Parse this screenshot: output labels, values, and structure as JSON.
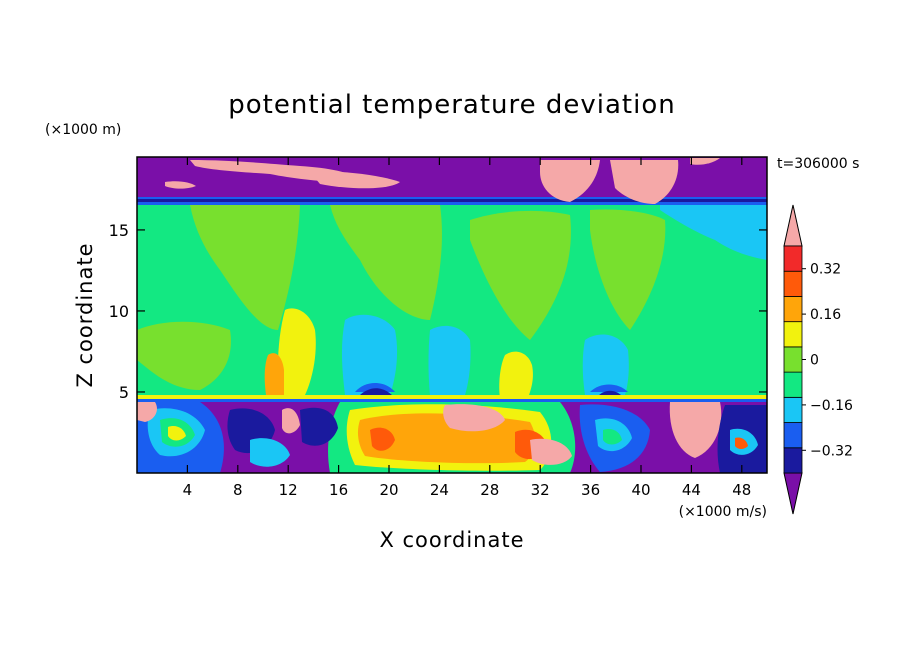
{
  "chart_data": {
    "type": "heatmap",
    "title": "potential temperature deviation",
    "xlabel": "X coordinate",
    "ylabel": "Z coordinate",
    "x_unit": "(×1000 m/s)",
    "y_unit": "(×1000 m)",
    "time_label": "t=306000 s",
    "xlim": [
      0,
      50
    ],
    "ylim": [
      0,
      19.5
    ],
    "x_ticks": [
      4,
      8,
      12,
      16,
      20,
      24,
      28,
      32,
      36,
      40,
      44,
      48
    ],
    "y_ticks": [
      5,
      10,
      15
    ],
    "colorbar": {
      "levels": [
        -0.4,
        -0.32,
        -0.24,
        -0.16,
        -0.08,
        0,
        0.08,
        0.16,
        0.24,
        0.32,
        0.4
      ],
      "labels": [
        {
          "value": 0.32,
          "text": "0.32"
        },
        {
          "value": 0.16,
          "text": "0.16"
        },
        {
          "value": 0,
          "text": "0"
        },
        {
          "value": -0.16,
          "text": "−0.16"
        },
        {
          "value": -0.32,
          "text": "−0.32"
        }
      ],
      "colors": [
        "#7a0fa8",
        "#1a1a9e",
        "#1a5ef0",
        "#1ac6f5",
        "#13e882",
        "#78e02e",
        "#f2f20e",
        "#ffa50a",
        "#ff5a0a",
        "#f22a2a",
        "#f5a8a8"
      ],
      "extend": "both"
    },
    "grid": false
  }
}
